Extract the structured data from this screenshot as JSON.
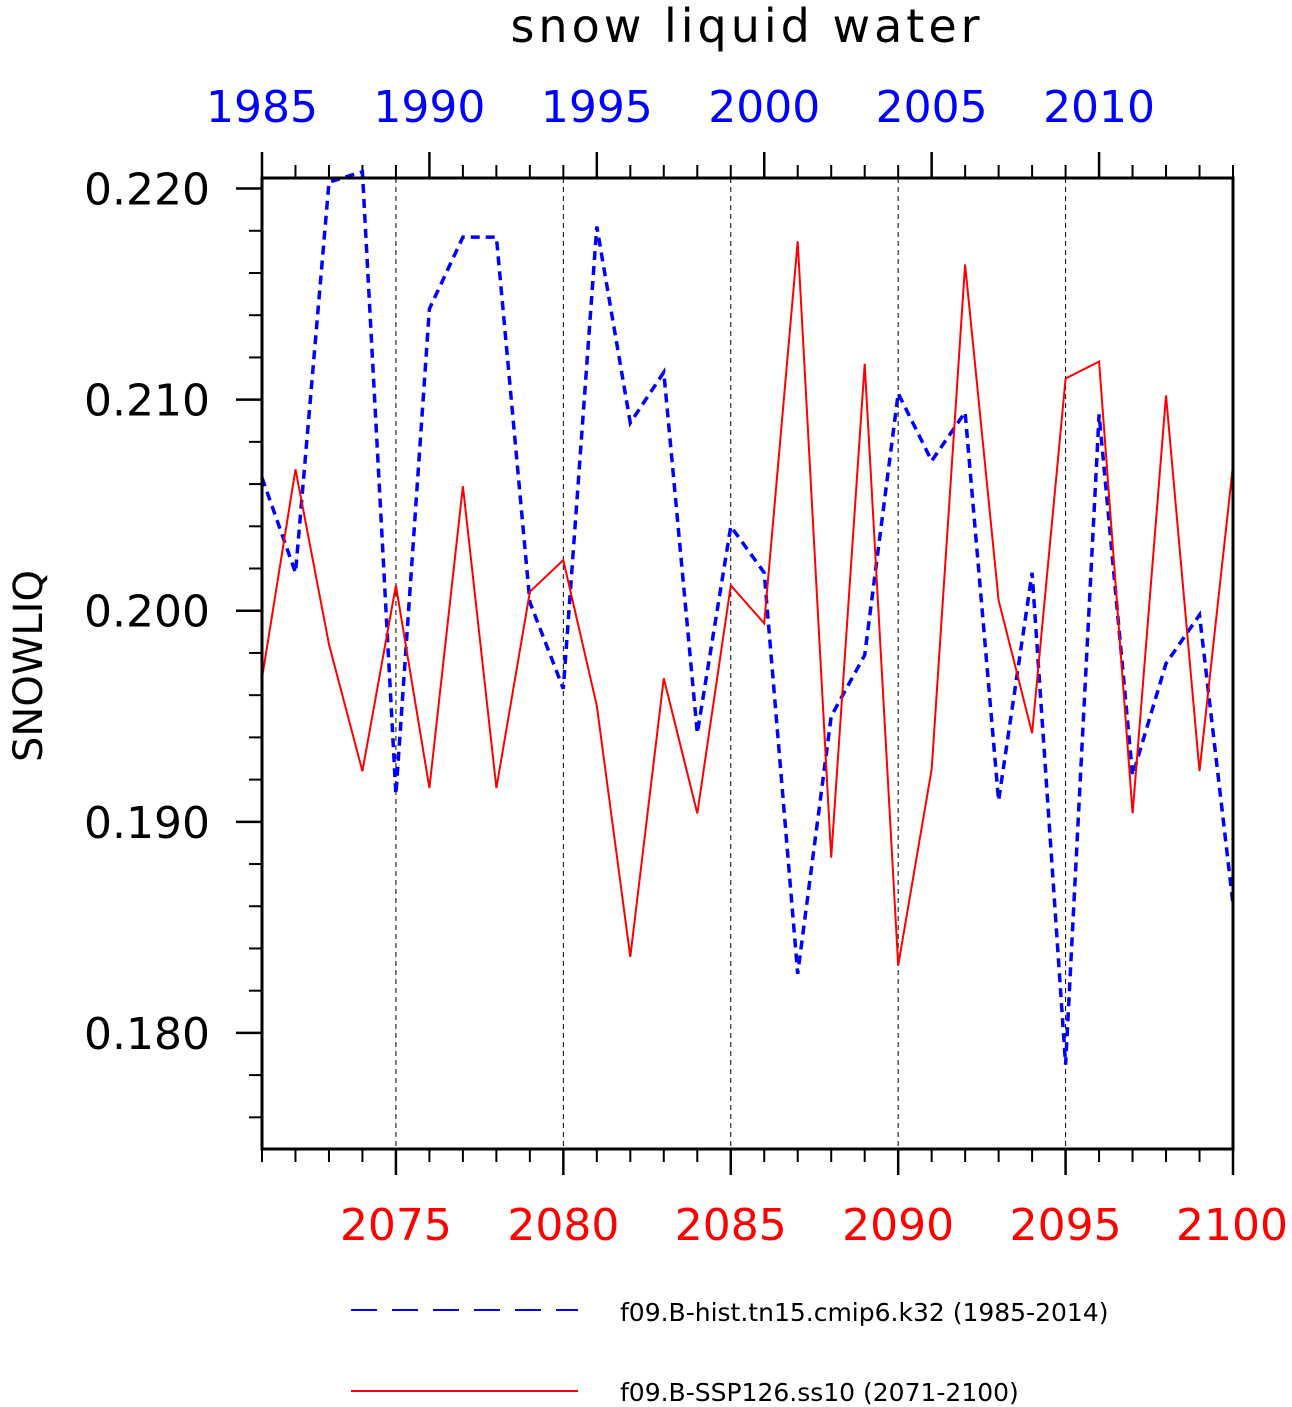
{
  "chart_data": {
    "type": "line",
    "title": "snow liquid water",
    "ylabel": "SNOWLIQ",
    "ylim": [
      0.1745,
      0.2205
    ],
    "y_ticks": [
      "0.180",
      "0.190",
      "0.200",
      "0.210",
      "0.220"
    ],
    "y_tick_values": [
      0.18,
      0.19,
      0.2,
      0.21,
      0.22
    ],
    "x_bottom": {
      "range": [
        2071,
        2100
      ],
      "ticks": [
        "2075",
        "2080",
        "2085",
        "2090",
        "2095",
        "2100"
      ],
      "tick_values": [
        2075,
        2080,
        2085,
        2090,
        2095,
        2100
      ],
      "color": "#ff0000"
    },
    "x_top": {
      "range": [
        1985,
        2014
      ],
      "ticks": [
        "1985",
        "1990",
        "1995",
        "2000",
        "2005",
        "2010"
      ],
      "tick_values": [
        1985,
        1990,
        1995,
        2000,
        2005,
        2010
      ],
      "color": "#0000ff"
    },
    "vertical_grid": [
      2075,
      2080,
      2085,
      2090,
      2095
    ],
    "legend_placement": "bottom",
    "series": [
      {
        "name": "f09.B-hist.tn15.cmip6.k32 (1985-2014)",
        "axis": "top",
        "color": "#0000ff",
        "dash": "dashed",
        "x": [
          1985,
          1986,
          1987,
          1988,
          1989,
          1990,
          1991,
          1992,
          1993,
          1994,
          1995,
          1996,
          1997,
          1998,
          1999,
          2000,
          2001,
          2002,
          2003,
          2004,
          2005,
          2006,
          2007,
          2008,
          2009,
          2010,
          2011,
          2012,
          2013,
          2014
        ],
        "values": [
          0.2063,
          0.2018,
          0.2203,
          0.2208,
          0.1913,
          0.2143,
          0.2177,
          0.2177,
          0.2004,
          0.1963,
          0.2182,
          0.2089,
          0.2113,
          0.1942,
          0.204,
          0.2018,
          0.1828,
          0.195,
          0.1979,
          0.2103,
          0.2071,
          0.2094,
          0.191,
          0.2018,
          0.1785,
          0.2093,
          0.1922,
          0.1975,
          0.1998,
          0.1861
        ]
      },
      {
        "name": "f09.B-SSP126.ss10 (2071-2100)",
        "axis": "bottom",
        "color": "#ff0000",
        "dash": "solid",
        "x": [
          2071,
          2072,
          2073,
          2074,
          2075,
          2076,
          2077,
          2078,
          2079,
          2080,
          2081,
          2082,
          2083,
          2084,
          2085,
          2086,
          2087,
          2088,
          2089,
          2090,
          2091,
          2092,
          2093,
          2094,
          2095,
          2096,
          2097,
          2098,
          2099,
          2100
        ],
        "values": [
          0.1968,
          0.2067,
          0.1984,
          0.1924,
          0.2012,
          0.1916,
          0.2059,
          0.1916,
          0.2009,
          0.2024,
          0.1955,
          0.1836,
          0.1968,
          0.1904,
          0.2012,
          0.1994,
          0.2175,
          0.1883,
          0.2117,
          0.1832,
          0.1925,
          0.2164,
          0.2005,
          0.1942,
          0.211,
          0.2118,
          0.1904,
          0.2102,
          0.1924,
          0.2069
        ]
      }
    ]
  }
}
